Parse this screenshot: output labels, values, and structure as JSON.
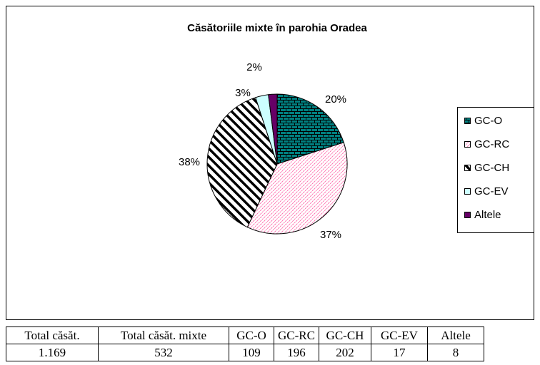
{
  "chart_data": {
    "type": "pie",
    "title": "Căsătoriile mixte în parohia Oradea",
    "categories": [
      "GC-O",
      "GC-RC",
      "GC-CH",
      "GC-EV",
      "Altele"
    ],
    "values": [
      20,
      37,
      38,
      3,
      2
    ],
    "value_labels": [
      "20%",
      "37%",
      "38%",
      "3%",
      "2%"
    ],
    "colors": [
      "#008080",
      "#ff66aa",
      "#000000",
      "#ccffff",
      "#660066"
    ],
    "legend": "right"
  },
  "table": {
    "header": [
      "Total căsăt.",
      "Total căsăt. mixte",
      "GC-O",
      "GC-RC",
      "GC-CH",
      "GC-EV",
      "Altele"
    ],
    "rows": [
      [
        "1.169",
        "532",
        "109",
        "196",
        "202",
        "17",
        "8"
      ]
    ]
  }
}
